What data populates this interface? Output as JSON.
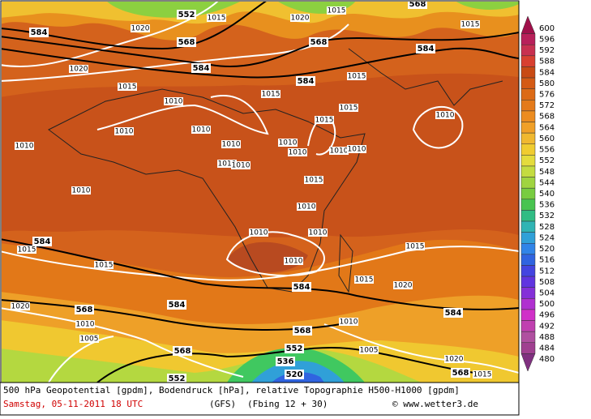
{
  "caption": {
    "line1": "500 hPa Geopotential [gpdm], Bodendruck [hPa], relative Topographie H500-H1000 [gpdm]",
    "date": "Samstag, 05-11-2011  18 UTC",
    "model": "(GFS)",
    "run": "(Fbing 12 + 30)",
    "source": "© www.wetter3.de"
  },
  "geopotential_labels": [
    "552",
    "568",
    "584",
    "568",
    "568",
    "584",
    "584",
    "584",
    "584",
    "584",
    "584",
    "568",
    "568",
    "568",
    "552",
    "552",
    "536",
    "520",
    "584",
    "568"
  ],
  "pressure_labels": [
    "1020",
    "1015",
    "1020",
    "1015",
    "1015",
    "1020",
    "1015",
    "1010",
    "1015",
    "1015",
    "1015",
    "1010",
    "1010",
    "1010",
    "1010",
    "1010",
    "1010",
    "1015",
    "1010",
    "1010",
    "1010",
    "1010",
    "1015",
    "1010",
    "1010",
    "1010",
    "1010",
    "1010",
    "1015",
    "1015",
    "1015",
    "1015",
    "1020",
    "1010",
    "1020",
    "1010",
    "1005",
    "1010",
    "1005",
    "1020",
    "1015"
  ],
  "legend": {
    "values": [
      600,
      596,
      592,
      588,
      584,
      580,
      576,
      572,
      568,
      564,
      560,
      556,
      552,
      548,
      544,
      540,
      536,
      532,
      528,
      524,
      520,
      516,
      512,
      508,
      504,
      500,
      496,
      492,
      488,
      484,
      480
    ],
    "colors": [
      "#a0104a",
      "#b8205a",
      "#c83050",
      "#d84030",
      "#c84a14",
      "#d45a14",
      "#dc6a16",
      "#e47a1a",
      "#ec8c20",
      "#f0a028",
      "#f0b830",
      "#f0cc30",
      "#e4dc3c",
      "#c4dc40",
      "#a0d440",
      "#78cc40",
      "#48c450",
      "#30bc84",
      "#30b4b4",
      "#30a0d8",
      "#3084e8",
      "#3064e0",
      "#4444e0",
      "#6034e0",
      "#8430d8",
      "#b030d0",
      "#d030c8",
      "#c040b0",
      "#b050a0",
      "#a04090",
      "#803080"
    ]
  }
}
